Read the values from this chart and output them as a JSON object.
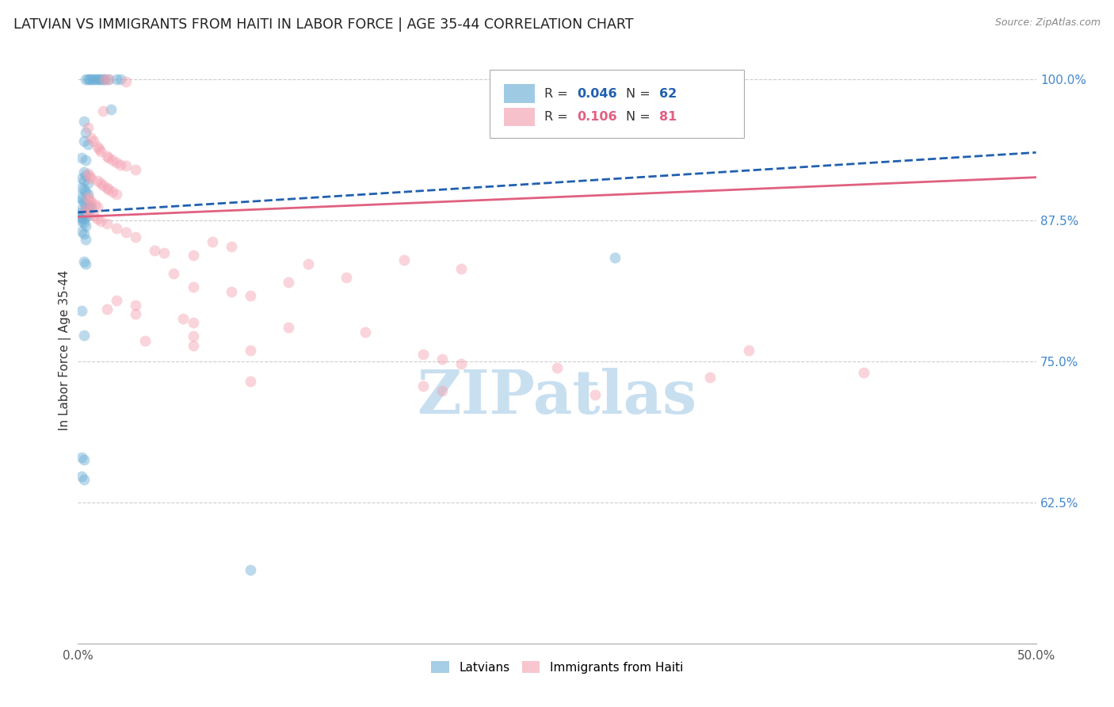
{
  "title": "LATVIAN VS IMMIGRANTS FROM HAITI IN LABOR FORCE | AGE 35-44 CORRELATION CHART",
  "source": "Source: ZipAtlas.com",
  "ylabel": "In Labor Force | Age 35-44",
  "xlim": [
    0.0,
    0.5
  ],
  "ylim": [
    0.5,
    1.02
  ],
  "yticks": [
    0.625,
    0.75,
    0.875,
    1.0
  ],
  "ytick_labels": [
    "62.5%",
    "75.0%",
    "87.5%",
    "100.0%"
  ],
  "xticks": [
    0.0,
    0.1,
    0.2,
    0.3,
    0.4,
    0.5
  ],
  "xtick_labels": [
    "0.0%",
    "",
    "",
    "",
    "",
    "50.0%"
  ],
  "blue_scatter": [
    [
      0.004,
      1.0
    ],
    [
      0.005,
      1.0
    ],
    [
      0.006,
      1.0
    ],
    [
      0.007,
      1.0
    ],
    [
      0.008,
      1.0
    ],
    [
      0.009,
      1.0
    ],
    [
      0.01,
      1.0
    ],
    [
      0.011,
      1.0
    ],
    [
      0.012,
      1.0
    ],
    [
      0.013,
      1.0
    ],
    [
      0.014,
      1.0
    ],
    [
      0.016,
      1.0
    ],
    [
      0.02,
      1.0
    ],
    [
      0.022,
      1.0
    ],
    [
      0.017,
      0.973
    ],
    [
      0.003,
      0.963
    ],
    [
      0.004,
      0.953
    ],
    [
      0.003,
      0.945
    ],
    [
      0.005,
      0.942
    ],
    [
      0.002,
      0.93
    ],
    [
      0.004,
      0.928
    ],
    [
      0.003,
      0.918
    ],
    [
      0.004,
      0.915
    ],
    [
      0.002,
      0.912
    ],
    [
      0.003,
      0.91
    ],
    [
      0.005,
      0.908
    ],
    [
      0.002,
      0.904
    ],
    [
      0.003,
      0.902
    ],
    [
      0.004,
      0.9
    ],
    [
      0.005,
      0.898
    ],
    [
      0.001,
      0.895
    ],
    [
      0.002,
      0.893
    ],
    [
      0.003,
      0.891
    ],
    [
      0.004,
      0.889
    ],
    [
      0.005,
      0.887
    ],
    [
      0.006,
      0.888
    ],
    [
      0.007,
      0.886
    ],
    [
      0.001,
      0.884
    ],
    [
      0.002,
      0.882
    ],
    [
      0.003,
      0.881
    ],
    [
      0.004,
      0.88
    ],
    [
      0.005,
      0.879
    ],
    [
      0.001,
      0.878
    ],
    [
      0.002,
      0.877
    ],
    [
      0.003,
      0.876
    ],
    [
      0.002,
      0.874
    ],
    [
      0.003,
      0.873
    ],
    [
      0.004,
      0.87
    ],
    [
      0.002,
      0.865
    ],
    [
      0.003,
      0.863
    ],
    [
      0.004,
      0.858
    ],
    [
      0.003,
      0.838
    ],
    [
      0.004,
      0.836
    ],
    [
      0.002,
      0.795
    ],
    [
      0.003,
      0.773
    ],
    [
      0.002,
      0.665
    ],
    [
      0.003,
      0.663
    ],
    [
      0.002,
      0.648
    ],
    [
      0.003,
      0.645
    ],
    [
      0.28,
      0.842
    ],
    [
      0.09,
      0.565
    ]
  ],
  "pink_scatter": [
    [
      0.014,
      1.0
    ],
    [
      0.016,
      1.0
    ],
    [
      0.025,
      0.998
    ],
    [
      0.013,
      0.972
    ],
    [
      0.005,
      0.957
    ],
    [
      0.007,
      0.948
    ],
    [
      0.008,
      0.945
    ],
    [
      0.01,
      0.94
    ],
    [
      0.011,
      0.938
    ],
    [
      0.012,
      0.936
    ],
    [
      0.015,
      0.932
    ],
    [
      0.016,
      0.93
    ],
    [
      0.018,
      0.928
    ],
    [
      0.02,
      0.926
    ],
    [
      0.022,
      0.924
    ],
    [
      0.025,
      0.923
    ],
    [
      0.03,
      0.92
    ],
    [
      0.005,
      0.916
    ],
    [
      0.006,
      0.914
    ],
    [
      0.007,
      0.912
    ],
    [
      0.01,
      0.91
    ],
    [
      0.012,
      0.908
    ],
    [
      0.013,
      0.906
    ],
    [
      0.015,
      0.904
    ],
    [
      0.016,
      0.902
    ],
    [
      0.018,
      0.9
    ],
    [
      0.02,
      0.898
    ],
    [
      0.005,
      0.895
    ],
    [
      0.006,
      0.893
    ],
    [
      0.007,
      0.891
    ],
    [
      0.009,
      0.889
    ],
    [
      0.01,
      0.887
    ],
    [
      0.004,
      0.885
    ],
    [
      0.005,
      0.883
    ],
    [
      0.006,
      0.881
    ],
    [
      0.008,
      0.879
    ],
    [
      0.01,
      0.876
    ],
    [
      0.012,
      0.874
    ],
    [
      0.015,
      0.872
    ],
    [
      0.02,
      0.868
    ],
    [
      0.025,
      0.864
    ],
    [
      0.03,
      0.86
    ],
    [
      0.07,
      0.856
    ],
    [
      0.08,
      0.852
    ],
    [
      0.04,
      0.848
    ],
    [
      0.045,
      0.846
    ],
    [
      0.06,
      0.844
    ],
    [
      0.17,
      0.84
    ],
    [
      0.12,
      0.836
    ],
    [
      0.2,
      0.832
    ],
    [
      0.05,
      0.828
    ],
    [
      0.14,
      0.824
    ],
    [
      0.11,
      0.82
    ],
    [
      0.06,
      0.816
    ],
    [
      0.08,
      0.812
    ],
    [
      0.09,
      0.808
    ],
    [
      0.02,
      0.804
    ],
    [
      0.03,
      0.8
    ],
    [
      0.015,
      0.796
    ],
    [
      0.03,
      0.792
    ],
    [
      0.055,
      0.788
    ],
    [
      0.06,
      0.784
    ],
    [
      0.11,
      0.78
    ],
    [
      0.15,
      0.776
    ],
    [
      0.06,
      0.772
    ],
    [
      0.035,
      0.768
    ],
    [
      0.06,
      0.764
    ],
    [
      0.09,
      0.76
    ],
    [
      0.18,
      0.756
    ],
    [
      0.19,
      0.752
    ],
    [
      0.2,
      0.748
    ],
    [
      0.25,
      0.744
    ],
    [
      0.41,
      0.74
    ],
    [
      0.33,
      0.736
    ],
    [
      0.09,
      0.732
    ],
    [
      0.18,
      0.728
    ],
    [
      0.19,
      0.724
    ],
    [
      0.27,
      0.72
    ],
    [
      0.35,
      0.76
    ]
  ],
  "blue_line": [
    [
      0.0,
      0.882
    ],
    [
      0.5,
      0.935
    ]
  ],
  "pink_line": [
    [
      0.0,
      0.878
    ],
    [
      0.5,
      0.913
    ]
  ],
  "background_color": "#ffffff",
  "scatter_alpha": 0.45,
  "scatter_size": 100,
  "blue_color": "#6baed6",
  "pink_color": "#f4a0b0",
  "blue_line_color": "#2060b0",
  "pink_line_color": "#e06080",
  "grid_color": "#cccccc",
  "watermark_text": "ZIPatlas",
  "watermark_color": "#c8dff0",
  "right_tick_color": "#4488cc",
  "legend_r1": "0.046",
  "legend_n1": "62",
  "legend_r2": "0.106",
  "legend_n2": "81"
}
